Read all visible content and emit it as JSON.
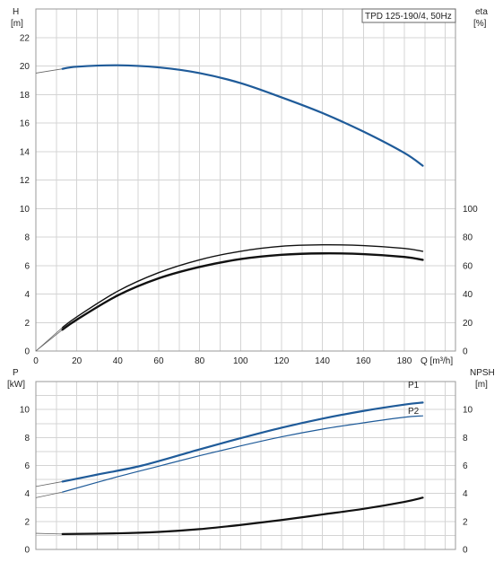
{
  "chart_data": [
    {
      "type": "line",
      "title": "TPD 125-190/4, 50Hz",
      "xlabel": "Q [m³/h]",
      "xlim": [
        0,
        205
      ],
      "x_ticks": [
        0,
        20,
        40,
        60,
        80,
        100,
        120,
        140,
        160,
        180
      ],
      "y_left": {
        "label_top": "H",
        "label_unit": "[m]",
        "range": [
          0,
          24
        ],
        "ticks": [
          0,
          2,
          4,
          6,
          8,
          10,
          12,
          14,
          16,
          18,
          20,
          22
        ]
      },
      "y_right": {
        "label_top": "eta",
        "label_unit": "[%]",
        "range": [
          0,
          240
        ],
        "ticks": [
          0,
          20,
          40,
          60,
          80,
          100
        ]
      },
      "grid": true,
      "series": [
        {
          "axis": "left",
          "color": "#1f5b99",
          "width": 2.2,
          "x": [
            13,
            20,
            40,
            60,
            80,
            100,
            120,
            140,
            160,
            180,
            189
          ],
          "y": [
            19.8,
            19.95,
            20.05,
            19.9,
            19.5,
            18.8,
            17.8,
            16.7,
            15.4,
            13.9,
            13.0
          ],
          "ext": {
            "x": [
              0,
              13
            ],
            "y": [
              19.5,
              19.8
            ]
          }
        },
        {
          "axis": "right",
          "color": "#111111",
          "width": 1.4,
          "x": [
            13,
            20,
            40,
            60,
            80,
            100,
            120,
            140,
            160,
            180,
            189
          ],
          "y": [
            16.5,
            24,
            42,
            55,
            64,
            70,
            73.5,
            74.5,
            74,
            72,
            70
          ],
          "ext": {
            "x": [
              0,
              13
            ],
            "y": [
              0,
              16.5
            ]
          }
        },
        {
          "axis": "right",
          "color": "#111111",
          "width": 2.4,
          "x": [
            13,
            20,
            40,
            60,
            80,
            100,
            120,
            140,
            160,
            180,
            189
          ],
          "y": [
            15,
            22,
            39,
            51,
            59,
            64.5,
            67.5,
            68.5,
            68,
            66,
            64
          ],
          "ext": {
            "x": [
              0,
              13
            ],
            "y": [
              0,
              15
            ]
          }
        }
      ]
    },
    {
      "type": "line",
      "xlim": [
        0,
        205
      ],
      "y_left": {
        "label_top": "P",
        "label_unit": "[kW]",
        "range": [
          0,
          12
        ],
        "ticks": [
          0,
          2,
          4,
          6,
          8,
          10
        ]
      },
      "y_right": {
        "label_top": "NPSH",
        "label_unit": "[m]",
        "range": [
          0,
          12
        ],
        "ticks": [
          0,
          2,
          4,
          6,
          8,
          10
        ]
      },
      "grid": true,
      "series": [
        {
          "name": "P1",
          "axis": "left",
          "color": "#1f5b99",
          "width": 2.2,
          "x": [
            13,
            30,
            52,
            80,
            100,
            120,
            140,
            160,
            180,
            189
          ],
          "y": [
            4.85,
            5.35,
            6.0,
            7.15,
            7.95,
            8.7,
            9.35,
            9.9,
            10.35,
            10.5
          ],
          "ext": {
            "x": [
              0,
              13
            ],
            "y": [
              4.5,
              4.85
            ]
          }
        },
        {
          "name": "P2",
          "axis": "left",
          "color": "#1f5b99",
          "width": 1.2,
          "x": [
            13,
            40,
            60,
            80,
            100,
            120,
            140,
            160,
            180,
            189
          ],
          "y": [
            4.1,
            5.2,
            5.95,
            6.7,
            7.4,
            8.05,
            8.6,
            9.05,
            9.45,
            9.55
          ],
          "ext": {
            "x": [
              0,
              13
            ],
            "y": [
              3.7,
              4.1
            ]
          }
        },
        {
          "axis": "right",
          "color": "#111111",
          "width": 2.2,
          "x": [
            13,
            40,
            60,
            80,
            100,
            120,
            140,
            160,
            180,
            189
          ],
          "y": [
            1.1,
            1.15,
            1.25,
            1.45,
            1.75,
            2.1,
            2.5,
            2.9,
            3.4,
            3.7
          ],
          "ext": {
            "x": [
              0,
              13
            ],
            "y": [
              1.15,
              1.1
            ]
          }
        }
      ]
    }
  ]
}
